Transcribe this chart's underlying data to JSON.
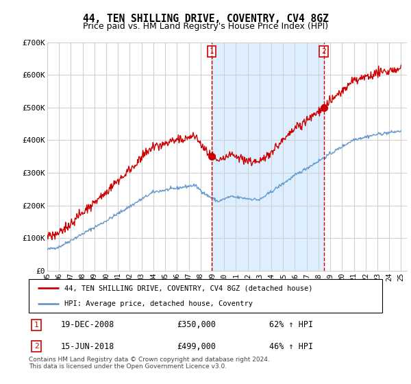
{
  "title": "44, TEN SHILLING DRIVE, COVENTRY, CV4 8GZ",
  "subtitle": "Price paid vs. HM Land Registry's House Price Index (HPI)",
  "red_label": "44, TEN SHILLING DRIVE, COVENTRY, CV4 8GZ (detached house)",
  "blue_label": "HPI: Average price, detached house, Coventry",
  "annotation1_date": "19-DEC-2008",
  "annotation1_price": "£350,000",
  "annotation1_hpi": "62% ↑ HPI",
  "annotation2_date": "15-JUN-2018",
  "annotation2_price": "£499,000",
  "annotation2_hpi": "46% ↑ HPI",
  "footnote": "Contains HM Land Registry data © Crown copyright and database right 2024.\nThis data is licensed under the Open Government Licence v3.0.",
  "ylim": [
    0,
    700000
  ],
  "yticks": [
    0,
    100000,
    200000,
    300000,
    400000,
    500000,
    600000,
    700000
  ],
  "ytick_labels": [
    "£0",
    "£100K",
    "£200K",
    "£300K",
    "£400K",
    "£500K",
    "£600K",
    "£700K"
  ],
  "red_color": "#cc0000",
  "blue_line_color": "#6699cc",
  "shade_color": "#ddeeff",
  "marker1_x": 2008.96,
  "marker1_y": 350000,
  "marker2_x": 2018.45,
  "marker2_y": 499000,
  "vline1_x": 2008.96,
  "vline2_x": 2018.45,
  "xmin": 1995,
  "xmax": 2025.5
}
